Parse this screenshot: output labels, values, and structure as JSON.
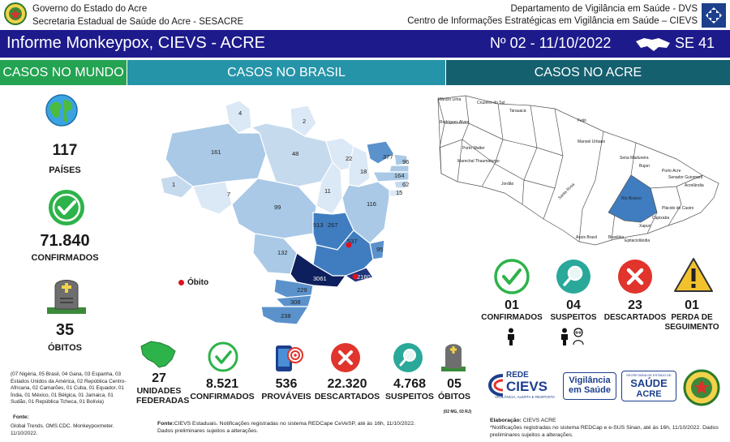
{
  "header": {
    "left_line1": "Governo do Estado do Acre",
    "left_line2": "Secretaria Estadual de Saúde do Acre - SESACRE",
    "right_line1": "Departamento de Vigilância em Saúde - DVS",
    "right_line2": "Centro de Informações Estratégicas em Vigilância em Saúde – CIEVS"
  },
  "banner": {
    "title": "Informe Monkeypox, CIEVS - ACRE",
    "number": "Nº 02 - 11/10/2022",
    "week": "SE 41"
  },
  "sections": {
    "world": "CASOS NO MUNDO",
    "brazil": "CASOS NO BRASIL",
    "acre": "CASOS NO ACRE"
  },
  "world": {
    "countries_value": "117",
    "countries_label": "PAÍSES",
    "confirmed_value": "71.840",
    "confirmed_label": "CONFIRMADOS",
    "deaths_value": "35",
    "deaths_label": "ÓBITOS",
    "deaths_note": "(07 Nigéria, 05 Brasil, 04 Gana, 03 Espanha, 03 Estados Unidos da América, 02 República Centro-Africana, 02 Camarões, 01 Cuba, 01 Equador, 01 Índia, 01 México, 01 Bélgica, 01 Jamaica, 01 Sudão, 01 República Tcheca, 01 Bolívia)",
    "source_title": "Fonte:",
    "source_text": "Global Trends. OMS.CDC. Monkeypoxmeter. 11/10/2022."
  },
  "brazil": {
    "map_legend": "Óbito",
    "state_values": [
      "4",
      "2",
      "161",
      "48",
      "22",
      "377",
      "96",
      "18",
      "164",
      "62",
      "15",
      "7",
      "1",
      "11",
      "116",
      "99",
      "513",
      "267",
      "537",
      "95",
      "132",
      "3061",
      "2160",
      "229",
      "308",
      "238"
    ],
    "stats": [
      {
        "value": "27",
        "label": "UNIDADES FEDERADAS"
      },
      {
        "value": "8.521",
        "label": "CONFIRMADOS"
      },
      {
        "value": "536",
        "label": "PROVÁVEIS"
      },
      {
        "value": "22.320",
        "label": "DESCARTADOS"
      },
      {
        "value": "4.768",
        "label": "SUSPEITOS"
      },
      {
        "value": "05",
        "label": "ÓBITOS"
      }
    ],
    "deaths_detail": "(02 MG, 03 RJ)",
    "source_title": "Fonte:",
    "source_text": "CIEVS Estaduais. Notificações registradas no sistema REDCape CeVeSP, até às 16h, 11/10/2022. Dados preliminares sujeitos a alterações."
  },
  "acre": {
    "municipalities": [
      "Mâncio Lima",
      "Cruzeiro do Sul",
      "Tarauacá",
      "Feijó",
      "Rodrigues Alves",
      "Manoel Urbano",
      "Porto Walter",
      "Sena Madureira",
      "Bujari",
      "Marechal Thaumaturgo",
      "Porto Acre",
      "Senador Guiomard",
      "Jordão",
      "Santa Rosa",
      "Rio Branco",
      "Acrelândia",
      "Plácido de Castro",
      "Capixaba",
      "Xapuri",
      "Assis Brasil",
      "Brasiléia",
      "Epitaciolândia"
    ],
    "highlighted": "Rio Branco",
    "stats": [
      {
        "value": "01",
        "label": "CONFIRMADOS"
      },
      {
        "value": "04",
        "label": "SUSPEITOS"
      },
      {
        "value": "23",
        "label": "DESCARTADOS"
      },
      {
        "value": "01",
        "label": "PERDA DE SEGUIMENTO"
      }
    ],
    "elaboration_title": "Elaboração:",
    "elaboration_text": "CIEVS ACRE",
    "note": "*Notificações registradas no sistema REDCap e e-SUS Sinan, até às 16h, 11/10/2022. Dados preliminares sujeitos a alterações.",
    "logos": {
      "rede": "REDE",
      "cievs": "CIEVS",
      "cievs_sub": "VIGILÂNCIA, ALERTA E RESPOSTA",
      "vig1": "Vigilância",
      "vig2": "em Saúde",
      "saude_top": "SECRETARIA DE ESTADO DE",
      "saude1": "SAÚDE",
      "saude2": "ACRE"
    }
  },
  "colors": {
    "banner": "#1d1a8c",
    "world": "#24a352",
    "brazil": "#2694a8",
    "acre": "#15606f",
    "check": "#2db34a",
    "discard": "#e0342c",
    "search": "#2aa89a",
    "warning": "#f2c12e"
  }
}
